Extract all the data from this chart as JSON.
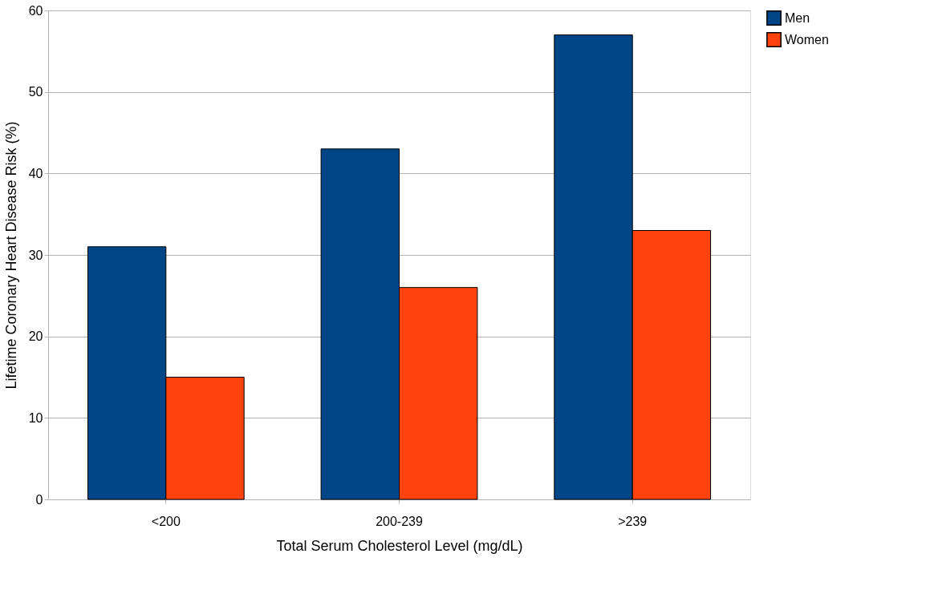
{
  "chart_data": {
    "type": "bar",
    "xlabel": "Total Serum Cholesterol Level (mg/dL)",
    "ylabel": "Lifetime Coronary Heart Disease Risk (%)",
    "categories": [
      "<200",
      "200-239",
      ">239"
    ],
    "series": [
      {
        "name": "Men",
        "color": "#004586",
        "values": [
          31,
          43,
          57
        ]
      },
      {
        "name": "Women",
        "color": "#ff420e",
        "values": [
          15,
          26,
          33
        ]
      }
    ],
    "ylim": [
      0,
      60
    ],
    "yticks": [
      0,
      10,
      20,
      30,
      40,
      50,
      60
    ],
    "grid": "y",
    "legend": "right"
  }
}
